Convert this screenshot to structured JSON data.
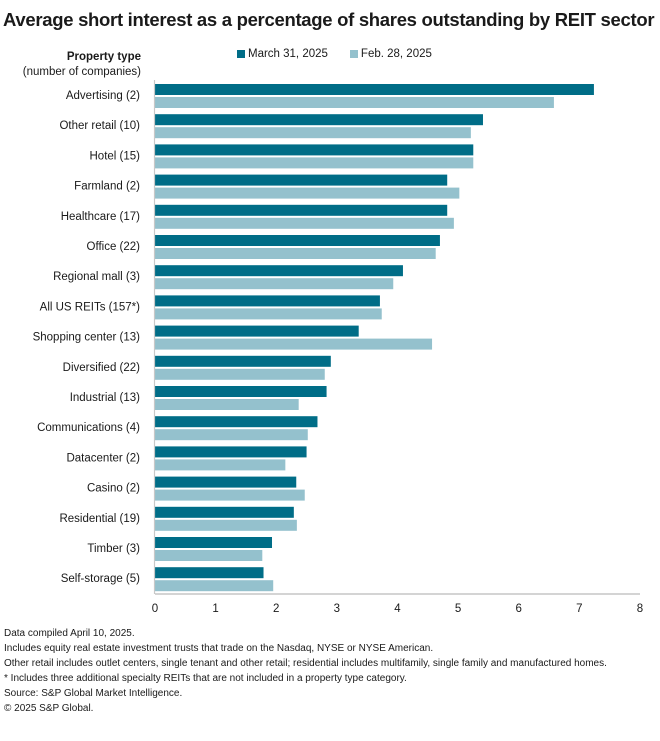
{
  "chart_data": {
    "type": "bar",
    "orientation": "horizontal",
    "title": "Average short interest as a percentage of shares outstanding by REIT sector",
    "ylabel_line1": "Property type",
    "ylabel_line2": "(number of companies)",
    "xlabel": "",
    "xlim": [
      0,
      8
    ],
    "xticks": [
      "0",
      "1",
      "2",
      "3",
      "4",
      "5",
      "6",
      "7",
      "8"
    ],
    "grid": false,
    "legend_position": "top",
    "categories": [
      "Advertising (2)",
      "Other retail (10)",
      "Hotel (15)",
      "Farmland (2)",
      "Healthcare (17)",
      "Office (22)",
      "Regional mall (3)",
      "All US REITs (157*)",
      "Shopping center (13)",
      "Diversified (22)",
      "Industrial (13)",
      "Communications (4)",
      "Datacenter (2)",
      "Casino (2)",
      "Residential (19)",
      "Timber (3)",
      "Self-storage (5)"
    ],
    "series": [
      {
        "name": "March 31, 2025",
        "color": "#006d87",
        "values": [
          7.24,
          5.41,
          5.25,
          4.82,
          4.82,
          4.7,
          4.09,
          3.71,
          3.36,
          2.9,
          2.83,
          2.68,
          2.5,
          2.33,
          2.29,
          1.93,
          1.79
        ]
      },
      {
        "name": "Feb. 28, 2025",
        "color": "#94c1cd",
        "values": [
          6.58,
          5.21,
          5.25,
          5.02,
          4.93,
          4.63,
          3.93,
          3.74,
          4.57,
          2.8,
          2.37,
          2.52,
          2.15,
          2.47,
          2.34,
          1.77,
          1.95
        ]
      }
    ]
  },
  "notes": [
    "Data compiled April 10, 2025.",
    "Includes equity real estate investment trusts that trade on the Nasdaq, NYSE or NYSE American.",
    "Other retail includes outlet centers, single tenant and other retail; residential includes multifamily, single family and manufactured homes.",
    "* Includes three additional specialty REITs that are not included in a property type category.",
    "Source: S&P Global Market Intelligence.",
    "© 2025 S&P Global."
  ]
}
